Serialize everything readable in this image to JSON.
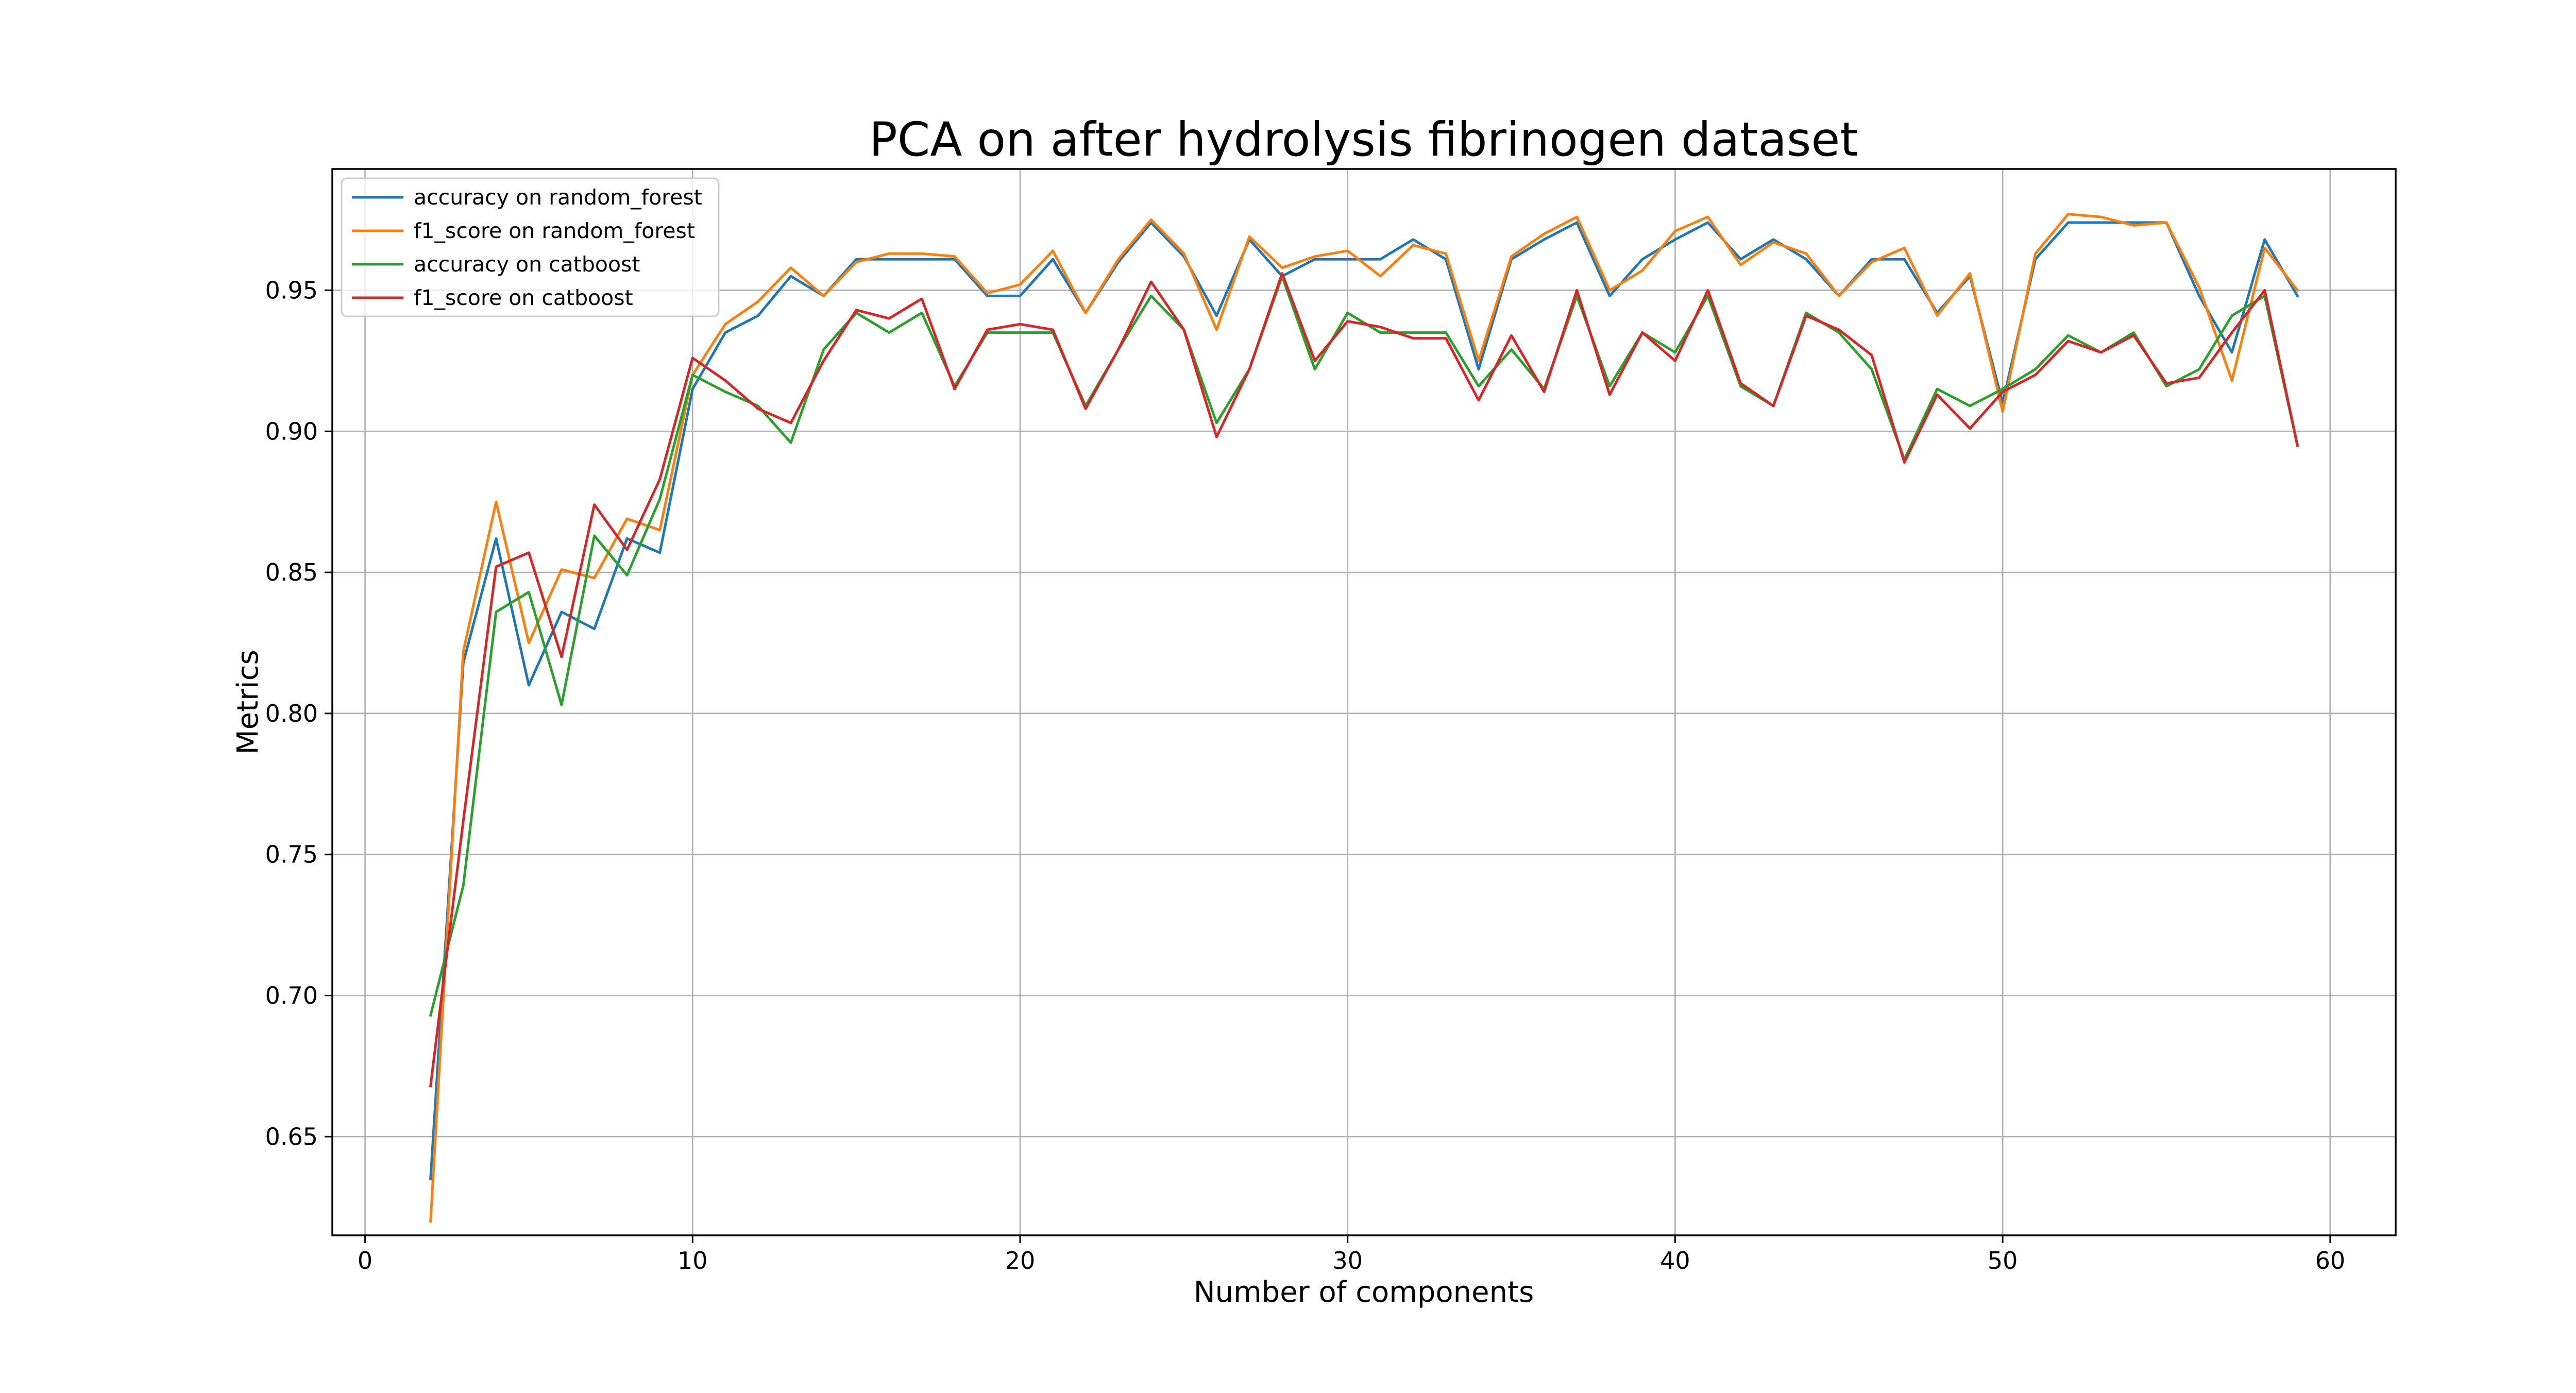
{
  "chart_data": {
    "type": "line",
    "title": "PCA on after hydrolysis fibrinogen dataset",
    "xlabel": "Number of components",
    "ylabel": "Metrics",
    "xlim": [
      -1,
      62
    ],
    "ylim": [
      0.615,
      0.993
    ],
    "xticks": [
      0,
      10,
      20,
      30,
      40,
      50,
      60
    ],
    "yticks": [
      0.65,
      0.7,
      0.75,
      0.8,
      0.85,
      0.9,
      0.95
    ],
    "grid": true,
    "legend_position": "top-left",
    "x": [
      2,
      3,
      4,
      5,
      6,
      7,
      8,
      9,
      10,
      11,
      12,
      13,
      14,
      15,
      16,
      17,
      18,
      19,
      20,
      21,
      22,
      23,
      24,
      25,
      26,
      27,
      28,
      29,
      30,
      31,
      32,
      33,
      34,
      35,
      36,
      37,
      38,
      39,
      40,
      41,
      42,
      43,
      44,
      45,
      46,
      47,
      48,
      49,
      50,
      51,
      52,
      53,
      54,
      55,
      56,
      57,
      58,
      59
    ],
    "series": [
      {
        "name": "accuracy on random_forest",
        "color": "#1f77b4",
        "values": [
          0.635,
          0.818,
          0.862,
          0.81,
          0.836,
          0.83,
          0.862,
          0.857,
          0.915,
          0.935,
          0.941,
          0.955,
          0.948,
          0.961,
          0.961,
          0.961,
          0.961,
          0.948,
          0.948,
          0.961,
          0.942,
          0.96,
          0.974,
          0.962,
          0.941,
          0.968,
          0.955,
          0.961,
          0.961,
          0.961,
          0.968,
          0.961,
          0.922,
          0.961,
          0.968,
          0.974,
          0.948,
          0.961,
          0.968,
          0.974,
          0.961,
          0.968,
          0.961,
          0.948,
          0.961,
          0.961,
          0.942,
          0.955,
          0.91,
          0.961,
          0.974,
          0.974,
          0.974,
          0.974,
          0.948,
          0.928,
          0.968,
          0.948
        ]
      },
      {
        "name": "f1_score on random_forest",
        "color": "#ff7f0e",
        "values": [
          0.62,
          0.822,
          0.875,
          0.825,
          0.851,
          0.848,
          0.869,
          0.865,
          0.92,
          0.938,
          0.946,
          0.958,
          0.948,
          0.96,
          0.963,
          0.963,
          0.962,
          0.949,
          0.952,
          0.964,
          0.942,
          0.961,
          0.975,
          0.963,
          0.936,
          0.969,
          0.958,
          0.962,
          0.964,
          0.955,
          0.966,
          0.963,
          0.925,
          0.962,
          0.97,
          0.976,
          0.95,
          0.957,
          0.971,
          0.976,
          0.959,
          0.967,
          0.963,
          0.948,
          0.96,
          0.965,
          0.941,
          0.956,
          0.907,
          0.963,
          0.977,
          0.976,
          0.973,
          0.974,
          0.951,
          0.918,
          0.965,
          0.95
        ]
      },
      {
        "name": "accuracy on catboost",
        "color": "#2ca02c",
        "values": [
          0.693,
          0.739,
          0.836,
          0.843,
          0.803,
          0.863,
          0.849,
          0.876,
          0.92,
          0.914,
          0.909,
          0.896,
          0.929,
          0.942,
          0.935,
          0.942,
          0.916,
          0.935,
          0.935,
          0.935,
          0.909,
          0.929,
          0.948,
          0.936,
          0.903,
          0.922,
          0.955,
          0.922,
          0.942,
          0.935,
          0.935,
          0.935,
          0.916,
          0.929,
          0.915,
          0.948,
          0.916,
          0.935,
          0.928,
          0.948,
          0.916,
          0.909,
          0.942,
          0.935,
          0.922,
          0.89,
          0.915,
          0.909,
          0.915,
          0.922,
          0.934,
          0.928,
          0.935,
          0.916,
          0.922,
          0.941,
          0.948,
          0.895
        ]
      },
      {
        "name": "f1_score on catboost",
        "color": "#d62728",
        "values": [
          0.668,
          0.762,
          0.852,
          0.857,
          0.82,
          0.874,
          0.858,
          0.883,
          0.926,
          0.918,
          0.908,
          0.903,
          0.925,
          0.943,
          0.94,
          0.947,
          0.915,
          0.936,
          0.938,
          0.936,
          0.908,
          0.929,
          0.953,
          0.936,
          0.898,
          0.922,
          0.956,
          0.925,
          0.939,
          0.937,
          0.933,
          0.933,
          0.911,
          0.934,
          0.914,
          0.95,
          0.913,
          0.935,
          0.925,
          0.95,
          0.917,
          0.909,
          0.941,
          0.936,
          0.927,
          0.889,
          0.913,
          0.901,
          0.914,
          0.92,
          0.932,
          0.928,
          0.934,
          0.917,
          0.919,
          0.935,
          0.95,
          0.895
        ]
      }
    ]
  }
}
